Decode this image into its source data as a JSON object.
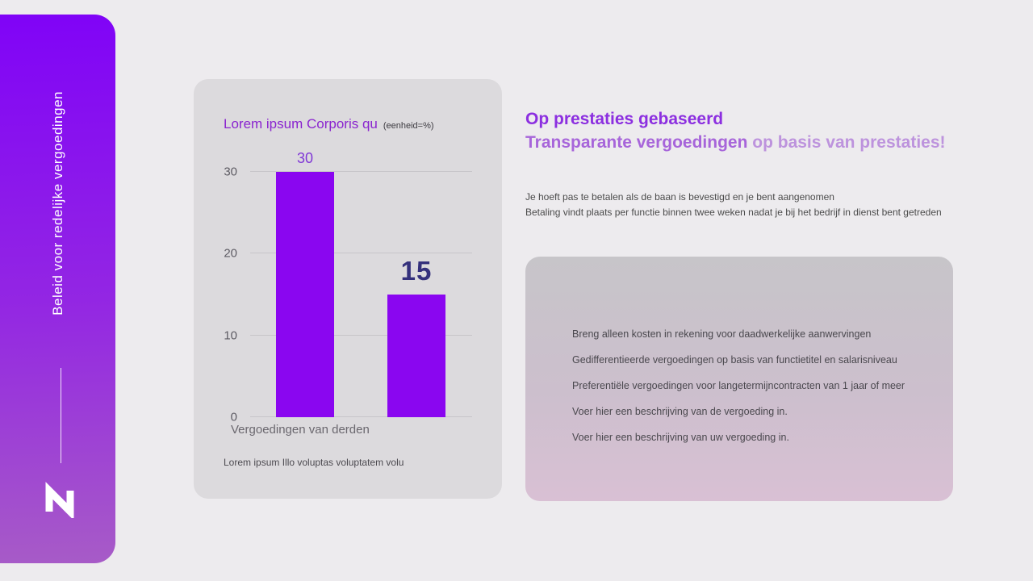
{
  "sidebar": {
    "vertical_title": "Beleid voor redelijke vergoedingen"
  },
  "chart_card": {
    "title": "Lorem ipsum Corporis qu",
    "unit_note": "(eenheid=%)",
    "x_axis_label": "Vergoedingen van derden",
    "caption": "Lorem ipsum Illo voluptas voluptatem volu"
  },
  "chart_data": {
    "type": "bar",
    "title": "Lorem ipsum Corporis qu",
    "subtitle": "(eenheid=%)",
    "xlabel": "Vergoedingen van derden",
    "ylabel": "",
    "values": [
      30,
      15
    ],
    "y_ticks": [
      0,
      10,
      20,
      30
    ],
    "ylim": [
      0,
      30
    ],
    "grid": "horizontal",
    "legend": "none",
    "bar_color": "#8a06f0",
    "value_label_colors": [
      "#8038d6",
      "#34307c"
    ]
  },
  "content": {
    "heading": "Op prestaties gebaseerd",
    "subheading_primary": "Transparante vergoedingen",
    "subheading_secondary": " op basis van prestaties!",
    "paragraph_line1": "Je hoeft pas te betalen als de baan is bevestigd en je bent aangenomen",
    "paragraph_line2": "Betaling vindt plaats per functie binnen twee weken nadat je bij het bedrijf in dienst bent getreden",
    "list": [
      "Breng alleen kosten in rekening voor daadwerkelijke aanwervingen",
      "Gedifferentieerde vergoedingen op basis van functietitel en salarisniveau",
      "Preferentiële vergoedingen voor langetermijncontracten van 1 jaar of meer",
      "Voer hier een beschrijving van de vergoeding in.",
      "Voer hier een beschrijving van uw vergoeding in."
    ]
  },
  "colors": {
    "background": "#edebee",
    "sidebar_gradient_top": "#8003f7",
    "sidebar_gradient_bottom": "#a75bc7",
    "chart_card_background": "#dcdadd",
    "bar_accent": "#8a06f0",
    "heading_purple": "#8c2fe0",
    "list_card_gradient_top": "#c7c5c9",
    "list_card_gradient_bottom": "#d9c0d4"
  }
}
